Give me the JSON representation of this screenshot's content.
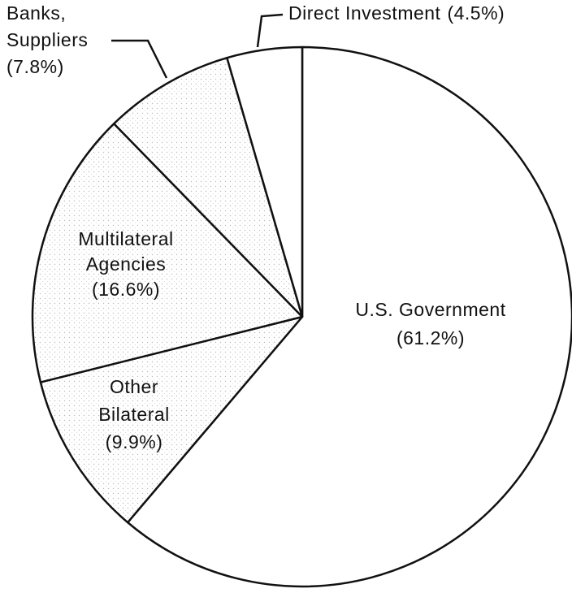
{
  "chart_data": {
    "type": "pie",
    "categories": [
      [
        "U.S. Government"
      ],
      [
        "Other",
        "Bilateral"
      ],
      [
        "Multilateral",
        "Agencies"
      ],
      [
        "Banks,",
        "Suppliers"
      ],
      [
        "Direct Investment"
      ]
    ],
    "values": [
      61.2,
      9.9,
      16.6,
      7.8,
      4.5
    ],
    "value_labels": [
      "(61.2%)",
      "(9.9%)",
      "(16.6%)",
      "(7.8%)",
      "(4.5%)"
    ],
    "colors": [
      "#ffffff",
      "#f1f1f1",
      "#eeeeee",
      "#e9e9e9",
      "#ffffff"
    ]
  }
}
